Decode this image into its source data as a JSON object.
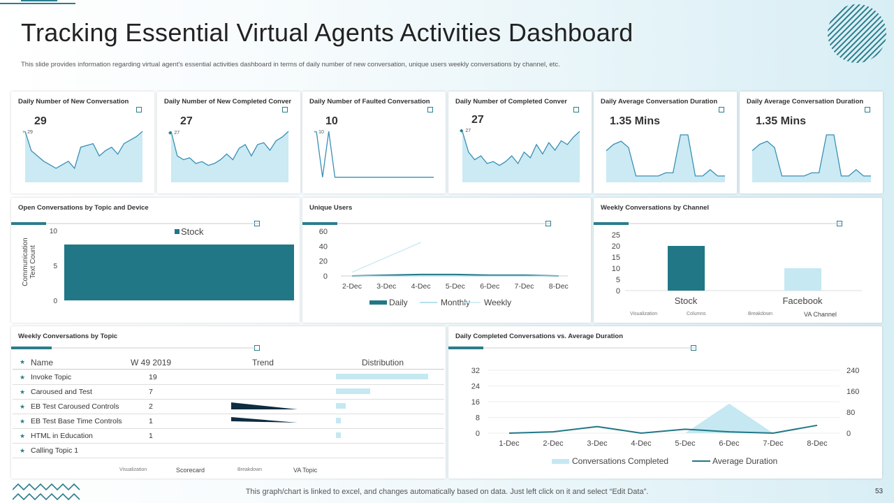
{
  "page": {
    "title": "Tracking Essential Virtual Agents Activities Dashboard",
    "subtitle": "This slide provides information regarding virtual agent's essential activities dashboard in terms of daily number of new conversation, unique users weekly conversations by channel, etc.",
    "footer": "This graph/chart is linked to excel,  and changes automatically based on data. Just left click on it and select “Edit Data”.",
    "page_number": "53",
    "accent": "#2b7d8c",
    "light": "#c5e8f2"
  },
  "kpis": [
    {
      "title": "Daily Number of New Conversation",
      "value": "29",
      "small": "29",
      "marker": "+"
    },
    {
      "title": "Daily Number of New Completed Conver",
      "value": "27",
      "small": "27",
      "marker": "◆"
    },
    {
      "title": "Daily Number of Faulted Conversation",
      "value": "10",
      "small": "10",
      "marker": "+"
    },
    {
      "title": "Daily Number of Completed Conver",
      "value": "27",
      "small": "27",
      "marker": "◆"
    },
    {
      "title": "Daily Average  Conversation Duration",
      "value": "1.35 Mins",
      "small": "",
      "marker": ""
    },
    {
      "title": "Daily Average  Conversation Duration",
      "value": "1.35 Mins",
      "small": "",
      "marker": ""
    }
  ],
  "open_conv": {
    "title": "Open Conversations by Topic and Device",
    "ylabel_line1": "Communication",
    "ylabel_line2": "Text Count"
  },
  "unique_users": {
    "title": "Unique Users"
  },
  "weekly_channel": {
    "title": "Weekly Conversations by Channel",
    "footer": [
      "Visualization",
      "Columns",
      "Breakdown",
      "VA Channel"
    ]
  },
  "weekly_topic": {
    "title": "Weekly Conversations by Topic",
    "headers": [
      "Name",
      "W 49 2019",
      "Trend",
      "Distribution"
    ],
    "rows": [
      {
        "name": "Invoke Topic",
        "value": "19"
      },
      {
        "name": "Caroused and Test",
        "value": "7"
      },
      {
        "name": "EB Test Caroused Controls",
        "value": "2"
      },
      {
        "name": "EB Test Base Time Controls",
        "value": "1"
      },
      {
        "name": "HTML  in Education",
        "value": "1"
      },
      {
        "name": "Calling Topic 1",
        "value": ""
      }
    ],
    "footer": [
      "Visualization",
      "Scorecard",
      "Breakdown",
      "VA Topic"
    ]
  },
  "daily_completed": {
    "title": "Daily Completed Conversations vs. Average Duration"
  },
  "chart_data": [
    {
      "type": "area",
      "title": "Daily Number of New Conversation",
      "values": [
        29,
        18,
        15,
        12,
        10,
        8,
        10,
        12,
        8,
        20,
        21,
        22,
        15,
        18,
        20,
        16,
        22,
        24,
        26,
        29
      ]
    },
    {
      "type": "area",
      "title": "Daily Number of New Completed Conver",
      "values": [
        27,
        14,
        12,
        13,
        10,
        11,
        9,
        10,
        12,
        15,
        12,
        18,
        20,
        14,
        20,
        21,
        17,
        22,
        24,
        27
      ]
    },
    {
      "type": "area",
      "title": "Daily Number of Faulted Conversation",
      "values": [
        10,
        1,
        10,
        1,
        1,
        1,
        1,
        1,
        1,
        1,
        1,
        1,
        1,
        1,
        1,
        1,
        1,
        1,
        1,
        1
      ]
    },
    {
      "type": "area",
      "title": "Daily Number of Completed Conver",
      "values": [
        27,
        16,
        12,
        14,
        10,
        11,
        9,
        11,
        14,
        10,
        16,
        13,
        20,
        15,
        21,
        17,
        22,
        20,
        24,
        27
      ]
    },
    {
      "type": "area",
      "title": "Daily Average  Conversation Duration",
      "values": [
        1.0,
        1.2,
        1.3,
        1.1,
        0.2,
        0.2,
        0.2,
        0.2,
        0.3,
        0.3,
        1.5,
        1.5,
        0.2,
        0.2,
        0.4,
        0.2,
        0.2
      ]
    },
    {
      "type": "area",
      "title": "Daily Average  Conversation Duration",
      "values": [
        1.0,
        1.2,
        1.3,
        1.1,
        0.2,
        0.2,
        0.2,
        0.2,
        0.3,
        0.3,
        1.5,
        1.5,
        0.2,
        0.2,
        0.4,
        0.2,
        0.2
      ]
    },
    {
      "type": "bar",
      "title": "Open Conversations by Topic and Device",
      "categories": [
        ""
      ],
      "series": [
        {
          "name": "Stock",
          "values": [
            8
          ]
        }
      ],
      "ylim": [
        0,
        10
      ],
      "yticks": [
        0,
        5,
        10
      ]
    },
    {
      "type": "line",
      "title": "Unique Users",
      "categories": [
        "2-Dec",
        "3-Dec",
        "4-Dec",
        "5-Dec",
        "6-Dec",
        "7-Dec",
        "8-Dec"
      ],
      "series": [
        {
          "name": "Daily",
          "values": [
            0,
            1,
            2,
            2,
            1,
            1,
            0
          ]
        },
        {
          "name": "Monthly",
          "values": [
            0,
            0,
            0,
            0,
            0,
            0,
            0
          ]
        },
        {
          "name": "Weekly",
          "values": [
            5,
            25,
            45,
            null,
            null,
            null,
            null
          ]
        }
      ],
      "ylim": [
        0,
        60
      ],
      "yticks": [
        0,
        20,
        40,
        60
      ]
    },
    {
      "type": "bar",
      "title": "Weekly Conversations by Channel",
      "categories": [
        "Stock",
        "Facebook"
      ],
      "values": [
        20,
        10
      ],
      "ylim": [
        0,
        25
      ],
      "yticks": [
        0,
        5,
        10,
        15,
        20,
        25
      ]
    },
    {
      "type": "line",
      "title": "Daily Completed Conversations vs. Average Duration",
      "categories": [
        "1-Dec",
        "2-Dec",
        "3-Dec",
        "4-Dec",
        "5-Dec",
        "6-Dec",
        "7-Dec",
        "8-Dec"
      ],
      "series": [
        {
          "name": "Conversations Completed",
          "type": "area",
          "values": [
            0,
            0,
            0,
            0,
            0,
            15,
            0,
            0
          ]
        },
        {
          "name": "Average Duration",
          "type": "line",
          "axis": "right",
          "values": [
            0,
            5,
            25,
            0,
            15,
            5,
            0,
            30
          ]
        }
      ],
      "ylim": [
        0,
        32
      ],
      "yticks": [
        0,
        8,
        16,
        24,
        32
      ],
      "y2lim": [
        0,
        240
      ],
      "y2ticks": [
        0,
        80,
        160,
        240
      ]
    },
    {
      "type": "bar",
      "title": "Weekly Conversations by Topic",
      "categories": [
        "Invoke Topic",
        "Caroused and Test",
        "EB Test Caroused Controls",
        "EB Test Base Time Controls",
        "HTML  in Education",
        "Calling Topic 1"
      ],
      "values": [
        19,
        7,
        2,
        1,
        1,
        0
      ]
    }
  ]
}
